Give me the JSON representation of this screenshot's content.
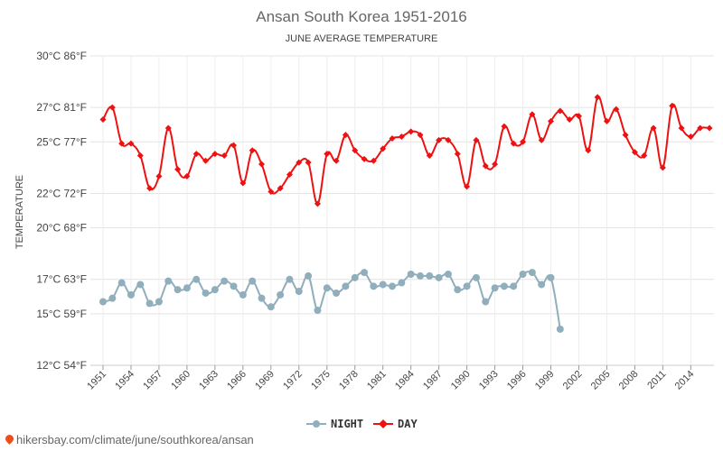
{
  "chart_data": {
    "type": "line",
    "title": "Ansan South Korea 1951-2016",
    "subtitle": "JUNE AVERAGE TEMPERATURE",
    "ylabel": "TEMPERATURE",
    "xlabel": "",
    "ylim": [
      12,
      30
    ],
    "xlim": [
      1951,
      2016
    ],
    "grid": true,
    "legend_position": "bottom-center",
    "y_ticks": [
      {
        "value": 12,
        "label": "12°C 54°F"
      },
      {
        "value": 15,
        "label": "15°C 59°F"
      },
      {
        "value": 17,
        "label": "17°C 63°F"
      },
      {
        "value": 20,
        "label": "20°C 68°F"
      },
      {
        "value": 22,
        "label": "22°C 72°F"
      },
      {
        "value": 25,
        "label": "25°C 77°F"
      },
      {
        "value": 27,
        "label": "27°C 81°F"
      },
      {
        "value": 30,
        "label": "30°C 86°F"
      }
    ],
    "x_ticks": [
      1951,
      1954,
      1957,
      1960,
      1963,
      1966,
      1969,
      1972,
      1975,
      1978,
      1981,
      1984,
      1987,
      1990,
      1993,
      1996,
      1999,
      2002,
      2005,
      2008,
      2011,
      2014
    ],
    "series": [
      {
        "name": "NIGHT",
        "color": "#90aebb",
        "marker": "circle",
        "x": [
          1951,
          1952,
          1953,
          1954,
          1955,
          1956,
          1957,
          1958,
          1959,
          1960,
          1961,
          1962,
          1963,
          1964,
          1965,
          1966,
          1967,
          1968,
          1969,
          1970,
          1971,
          1972,
          1973,
          1974,
          1975,
          1976,
          1977,
          1978,
          1979,
          1980,
          1981,
          1982,
          1983,
          1984,
          1985,
          1986,
          1987,
          1988,
          1989,
          1990,
          1991,
          1992,
          1993,
          1994,
          1995,
          1996,
          1997,
          1998,
          1999,
          2000
        ],
        "values": [
          15.7,
          15.9,
          16.8,
          16.1,
          16.7,
          15.6,
          15.7,
          16.9,
          16.4,
          16.5,
          17.0,
          16.2,
          16.4,
          16.9,
          16.6,
          16.1,
          16.9,
          15.9,
          15.4,
          16.1,
          17.0,
          16.3,
          17.2,
          15.2,
          16.5,
          16.2,
          16.6,
          17.1,
          17.4,
          16.6,
          16.7,
          16.6,
          16.8,
          17.3,
          17.2,
          17.2,
          17.1,
          17.3,
          16.4,
          16.6,
          17.1,
          15.7,
          16.5,
          16.6,
          16.6,
          17.3,
          17.4,
          16.7,
          17.1,
          14.1
        ]
      },
      {
        "name": "DAY",
        "color": "#ee1111",
        "marker": "diamond",
        "x": [
          1951,
          1952,
          1953,
          1954,
          1955,
          1956,
          1957,
          1958,
          1959,
          1960,
          1961,
          1962,
          1963,
          1964,
          1965,
          1966,
          1967,
          1968,
          1969,
          1970,
          1971,
          1972,
          1973,
          1974,
          1975,
          1976,
          1977,
          1978,
          1979,
          1980,
          1981,
          1982,
          1983,
          1984,
          1985,
          1986,
          1987,
          1988,
          1989,
          1990,
          1991,
          1992,
          1993,
          1994,
          1995,
          1996,
          1997,
          1998,
          1999,
          2000,
          2001,
          2002,
          2003,
          2004,
          2005,
          2006,
          2007,
          2008,
          2009,
          2010,
          2011,
          2012,
          2013,
          2014,
          2015,
          2016
        ],
        "values": [
          26.3,
          27.0,
          24.9,
          24.9,
          24.2,
          22.3,
          23.0,
          25.8,
          23.4,
          23.0,
          24.3,
          23.9,
          24.3,
          24.2,
          24.8,
          22.6,
          24.5,
          23.7,
          22.1,
          22.3,
          23.1,
          23.8,
          23.8,
          21.4,
          24.3,
          23.9,
          25.4,
          24.5,
          24.0,
          23.9,
          24.6,
          25.2,
          25.3,
          25.6,
          25.4,
          24.2,
          25.1,
          25.1,
          24.3,
          22.4,
          25.1,
          23.6,
          23.7,
          25.9,
          24.9,
          25.0,
          26.6,
          25.1,
          26.2,
          26.8,
          26.3,
          26.5,
          24.5,
          27.6,
          26.2,
          26.9,
          25.4,
          24.4,
          24.2,
          25.8,
          23.5,
          27.1,
          25.8,
          25.3,
          25.8,
          25.8
        ]
      }
    ]
  },
  "source": {
    "text": "hikersbay.com/climate/june/southkorea/ansan"
  }
}
